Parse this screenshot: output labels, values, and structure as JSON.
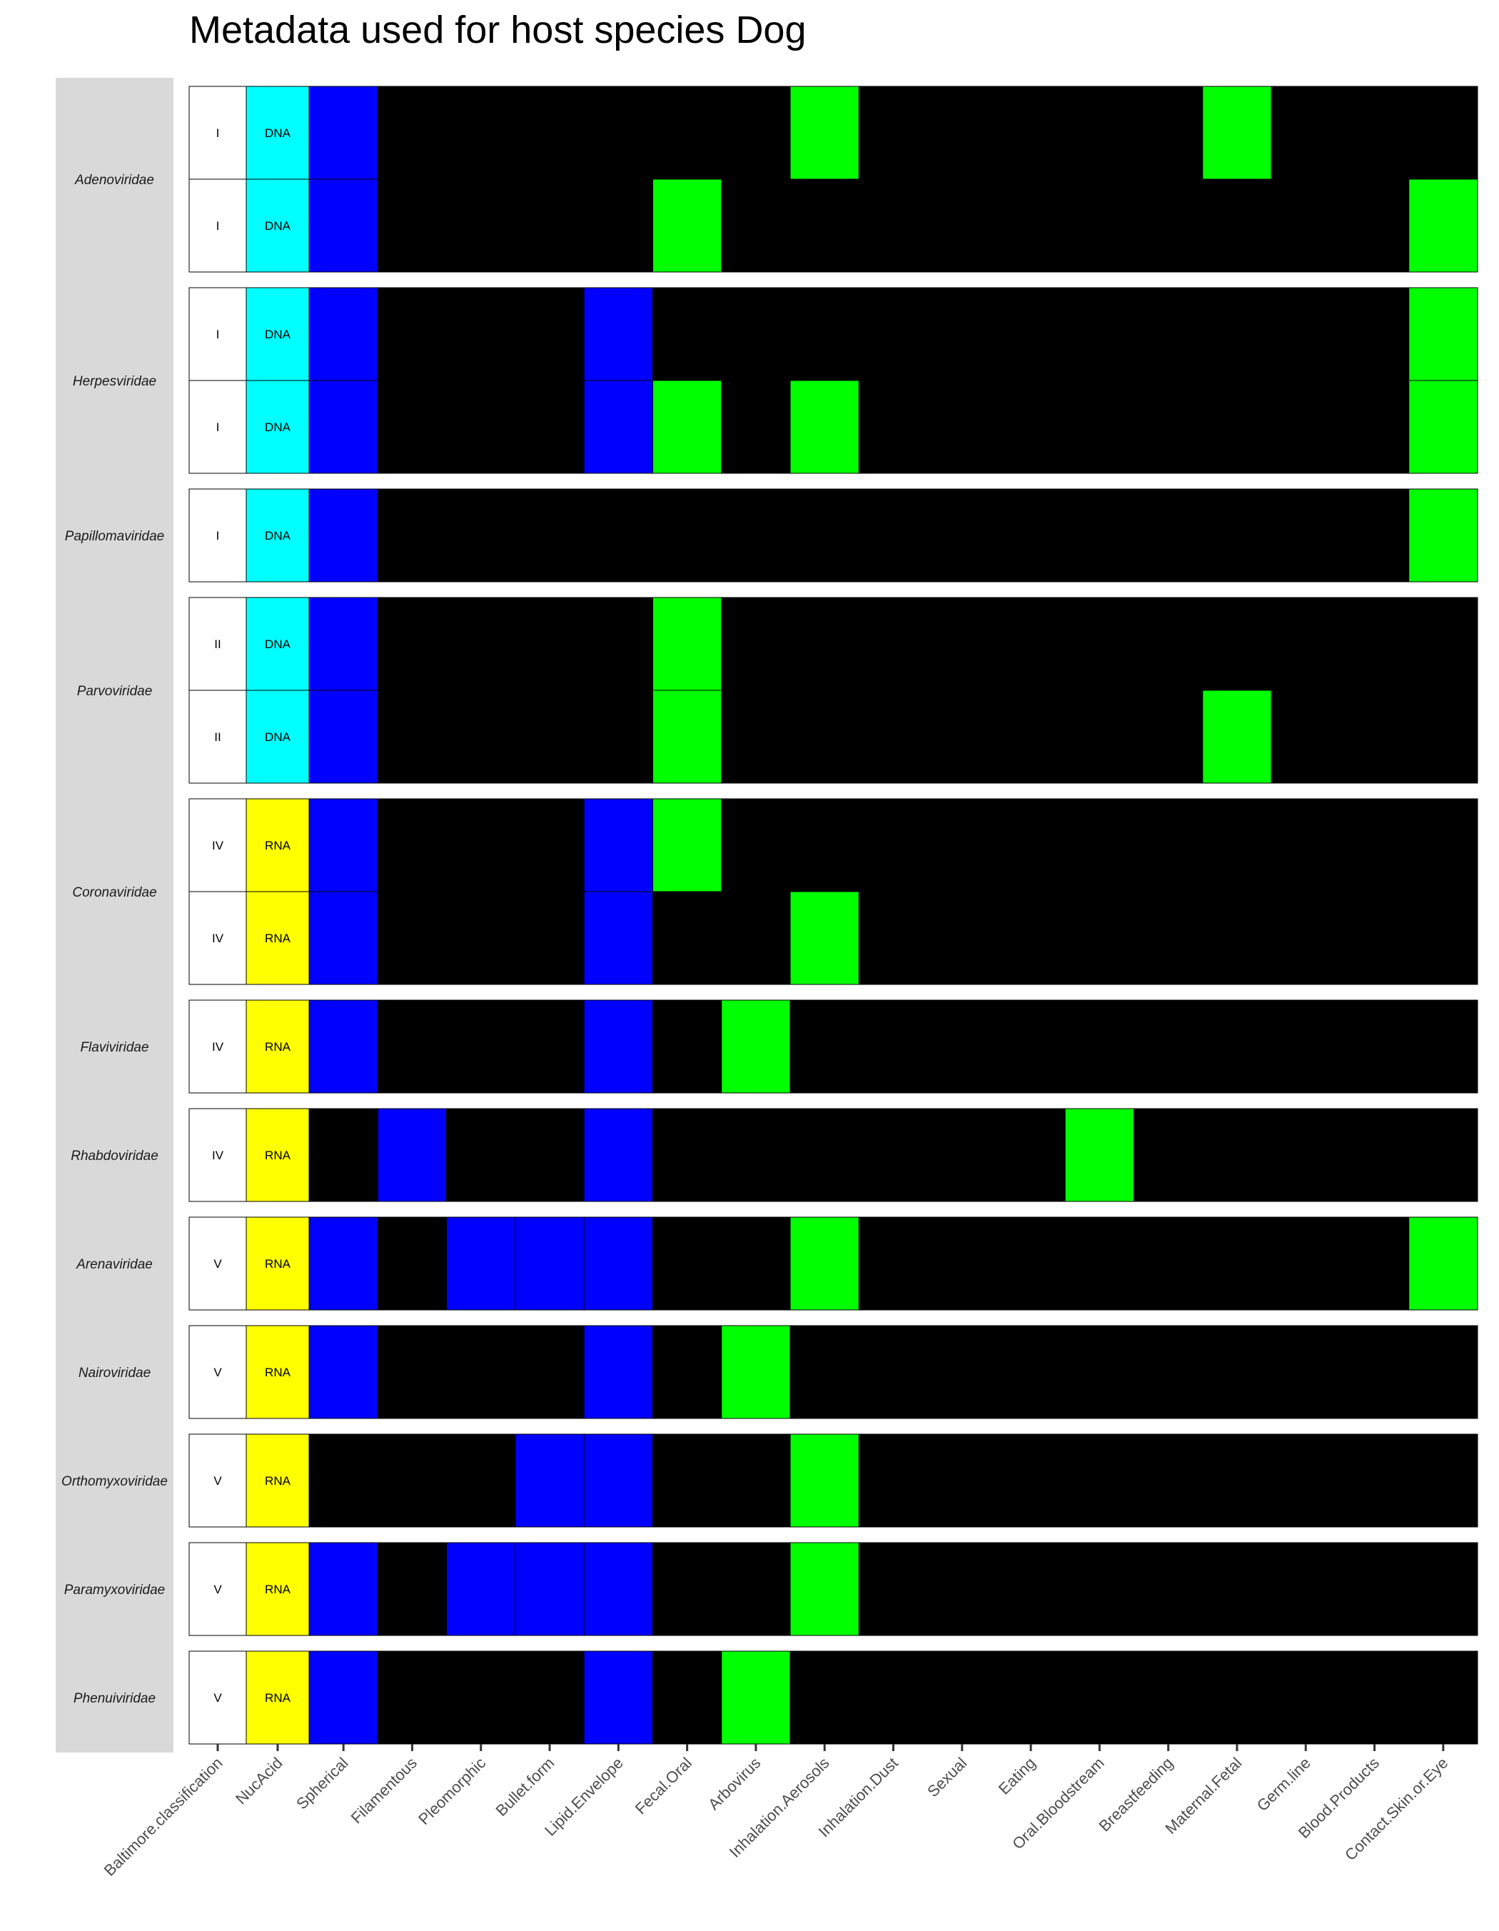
{
  "chart_data": {
    "type": "heatmap",
    "title": "Metadata used for host species Dog",
    "columns": [
      "Baltimore.classification",
      "NucAcid",
      "Spherical",
      "Filamentous",
      "Pleomorphic",
      "Bullet.form",
      "Lipid.Envelope",
      "Fecal.Oral",
      "Arbovirus",
      "Inhalation.Aerosols",
      "Inhalation.Dust",
      "Sexual",
      "Eating",
      "Oral.Bloodstream",
      "Breastfeeding",
      "Maternal.Fetal",
      "Germ.line",
      "Blood.Products",
      "Contact.Skin.or.Eye"
    ],
    "colors": {
      "baltimore": "#ffffff",
      "dna": "#00ffff",
      "rna": "#ffff00",
      "morphology": "#0000ff",
      "transmission": "#00ff00",
      "absent": "#000000",
      "facet_strip": "#d9d9d9"
    },
    "families": [
      {
        "name": "Adenoviridae",
        "rows": [
          {
            "baltimore": "I",
            "nucacid": "DNA",
            "morphology": [
              "Spherical"
            ],
            "transmission": [
              "Inhalation.Aerosols",
              "Maternal.Fetal"
            ]
          },
          {
            "baltimore": "I",
            "nucacid": "DNA",
            "morphology": [
              "Spherical"
            ],
            "transmission": [
              "Fecal.Oral",
              "Contact.Skin.or.Eye"
            ]
          }
        ]
      },
      {
        "name": "Herpesviridae",
        "rows": [
          {
            "baltimore": "I",
            "nucacid": "DNA",
            "morphology": [
              "Spherical",
              "Lipid.Envelope"
            ],
            "transmission": [
              "Contact.Skin.or.Eye"
            ]
          },
          {
            "baltimore": "I",
            "nucacid": "DNA",
            "morphology": [
              "Spherical",
              "Lipid.Envelope"
            ],
            "transmission": [
              "Fecal.Oral",
              "Inhalation.Aerosols",
              "Contact.Skin.or.Eye"
            ]
          }
        ]
      },
      {
        "name": "Papillomaviridae",
        "rows": [
          {
            "baltimore": "I",
            "nucacid": "DNA",
            "morphology": [
              "Spherical"
            ],
            "transmission": [
              "Contact.Skin.or.Eye"
            ]
          }
        ]
      },
      {
        "name": "Parvoviridae",
        "rows": [
          {
            "baltimore": "II",
            "nucacid": "DNA",
            "morphology": [
              "Spherical"
            ],
            "transmission": [
              "Fecal.Oral"
            ]
          },
          {
            "baltimore": "II",
            "nucacid": "DNA",
            "morphology": [
              "Spherical"
            ],
            "transmission": [
              "Fecal.Oral",
              "Maternal.Fetal"
            ]
          }
        ]
      },
      {
        "name": "Coronaviridae",
        "rows": [
          {
            "baltimore": "IV",
            "nucacid": "RNA",
            "morphology": [
              "Spherical",
              "Lipid.Envelope"
            ],
            "transmission": [
              "Fecal.Oral"
            ]
          },
          {
            "baltimore": "IV",
            "nucacid": "RNA",
            "morphology": [
              "Spherical",
              "Lipid.Envelope"
            ],
            "transmission": [
              "Inhalation.Aerosols"
            ]
          }
        ]
      },
      {
        "name": "Flaviviridae",
        "rows": [
          {
            "baltimore": "IV",
            "nucacid": "RNA",
            "morphology": [
              "Spherical",
              "Lipid.Envelope"
            ],
            "transmission": [
              "Arbovirus"
            ]
          }
        ]
      },
      {
        "name": "Rhabdoviridae",
        "rows": [
          {
            "baltimore": "IV",
            "nucacid": "RNA",
            "morphology": [
              "Filamentous",
              "Lipid.Envelope"
            ],
            "transmission": [
              "Oral.Bloodstream"
            ]
          }
        ]
      },
      {
        "name": "Arenaviridae",
        "rows": [
          {
            "baltimore": "V",
            "nucacid": "RNA",
            "morphology": [
              "Spherical",
              "Pleomorphic",
              "Bullet.form",
              "Lipid.Envelope"
            ],
            "transmission": [
              "Inhalation.Aerosols",
              "Contact.Skin.or.Eye"
            ]
          }
        ]
      },
      {
        "name": "Nairoviridae",
        "rows": [
          {
            "baltimore": "V",
            "nucacid": "RNA",
            "morphology": [
              "Spherical",
              "Lipid.Envelope"
            ],
            "transmission": [
              "Arbovirus"
            ]
          }
        ]
      },
      {
        "name": "Orthomyxoviridae",
        "rows": [
          {
            "baltimore": "V",
            "nucacid": "RNA",
            "morphology": [
              "Bullet.form",
              "Lipid.Envelope"
            ],
            "transmission": [
              "Inhalation.Aerosols"
            ]
          }
        ]
      },
      {
        "name": "Paramyxoviridae",
        "rows": [
          {
            "baltimore": "V",
            "nucacid": "RNA",
            "morphology": [
              "Spherical",
              "Pleomorphic",
              "Bullet.form",
              "Lipid.Envelope"
            ],
            "transmission": [
              "Inhalation.Aerosols"
            ]
          }
        ]
      },
      {
        "name": "Phenuiviridae",
        "rows": [
          {
            "baltimore": "V",
            "nucacid": "RNA",
            "morphology": [
              "Spherical",
              "Lipid.Envelope"
            ],
            "transmission": [
              "Arbovirus"
            ]
          }
        ]
      }
    ]
  }
}
